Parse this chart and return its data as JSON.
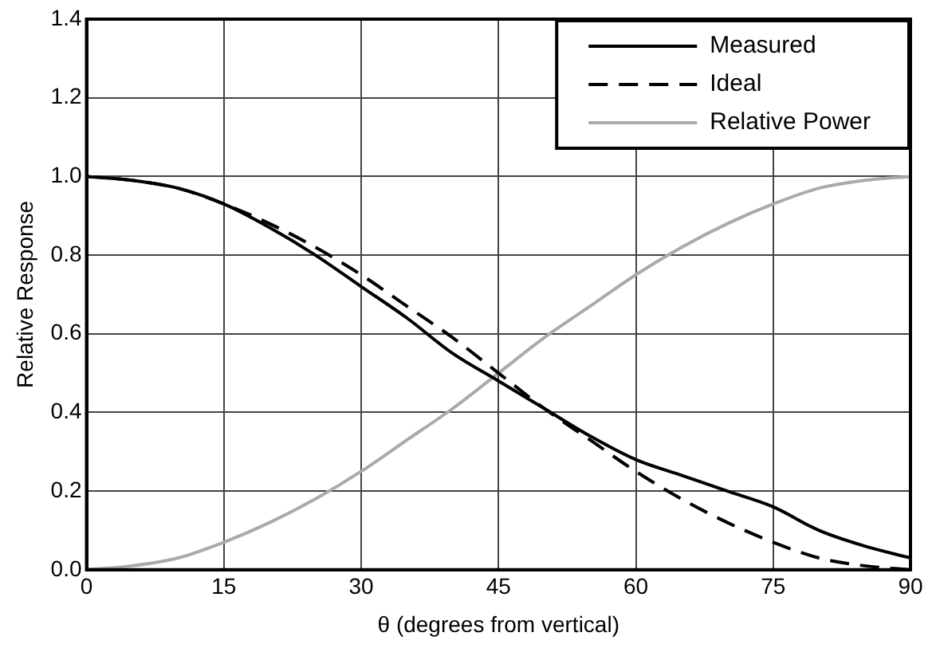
{
  "chart_data": {
    "type": "line",
    "xlabel": "θ (degrees from vertical)",
    "ylabel": "Relative Response",
    "x": [
      0,
      5,
      10,
      15,
      20,
      25,
      30,
      35,
      40,
      45,
      50,
      55,
      60,
      65,
      70,
      75,
      80,
      85,
      90
    ],
    "series": [
      {
        "name": "Measured",
        "color": "#000000",
        "line_style": "solid",
        "values": [
          1.0,
          0.99,
          0.97,
          0.93,
          0.87,
          0.8,
          0.72,
          0.64,
          0.55,
          0.48,
          0.41,
          0.34,
          0.28,
          0.24,
          0.2,
          0.16,
          0.1,
          0.06,
          0.03
        ]
      },
      {
        "name": "Ideal",
        "color": "#000000",
        "line_style": "dashed",
        "values": [
          1.0,
          0.99,
          0.97,
          0.93,
          0.88,
          0.82,
          0.75,
          0.67,
          0.59,
          0.5,
          0.41,
          0.33,
          0.25,
          0.18,
          0.12,
          0.07,
          0.03,
          0.01,
          0.0
        ]
      },
      {
        "name": "Relative Power",
        "color": "#aaaaaa",
        "line_style": "solid",
        "values": [
          0.0,
          0.01,
          0.03,
          0.07,
          0.12,
          0.18,
          0.25,
          0.33,
          0.41,
          0.5,
          0.59,
          0.67,
          0.75,
          0.82,
          0.88,
          0.93,
          0.97,
          0.99,
          1.0
        ]
      }
    ],
    "xlim": [
      0,
      90
    ],
    "xticks": [
      0,
      15,
      30,
      45,
      60,
      75,
      90
    ],
    "ylim": [
      0,
      1.4
    ],
    "yticks": [
      {
        "value": 0,
        "label": "0.0"
      },
      {
        "value": 0.2,
        "label": "0.2"
      },
      {
        "value": 0.4,
        "label": "0.4"
      },
      {
        "value": 0.6,
        "label": "0.6"
      },
      {
        "value": 0.8,
        "label": "0.8"
      },
      {
        "value": 1.0,
        "label": "1.0"
      },
      {
        "value": 1.2,
        "label": "1.2"
      },
      {
        "value": 1.4,
        "label": "1.4"
      }
    ],
    "grid": true,
    "legend": "top right",
    "marker": "none"
  }
}
